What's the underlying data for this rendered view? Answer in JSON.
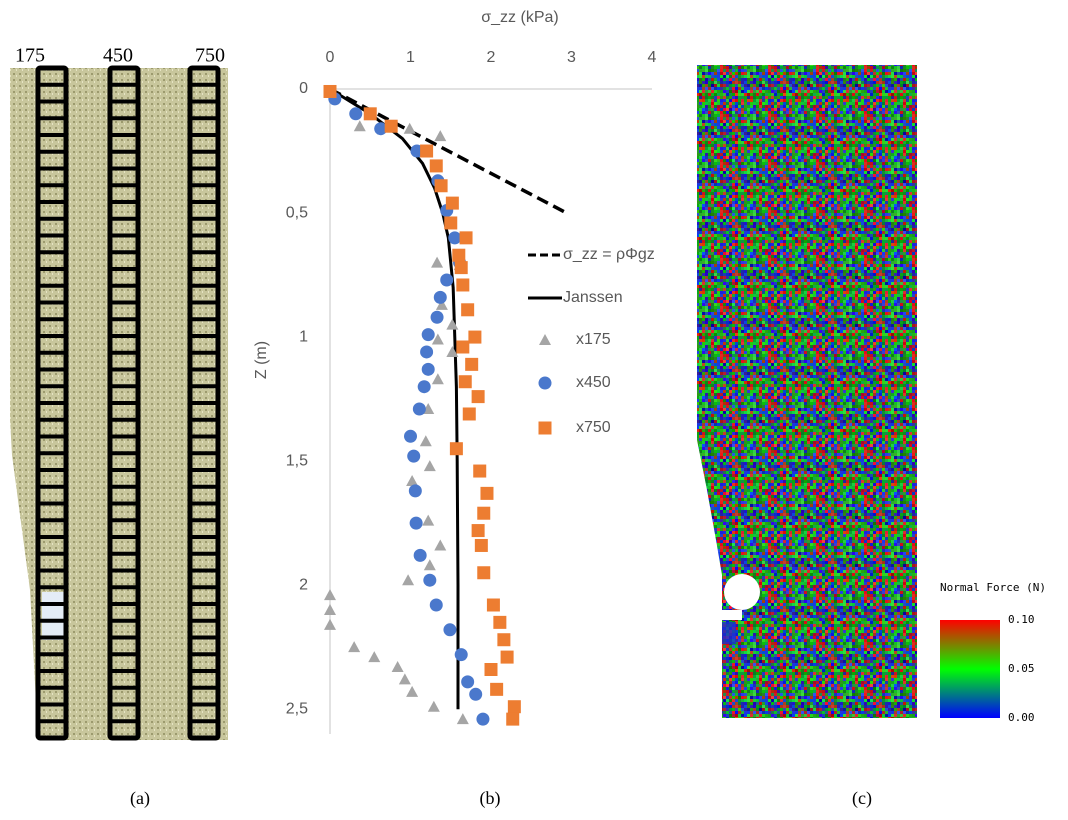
{
  "panel_a": {
    "column_labels": [
      "175",
      "450",
      "750"
    ],
    "caption": "(a)"
  },
  "chart_data": {
    "type": "scatter",
    "caption": "(b)",
    "xlabel": "σ_zz (kPa)",
    "ylabel": "Z (m)",
    "xlim": [
      0,
      4
    ],
    "xticks": [
      0,
      1,
      2,
      3,
      4
    ],
    "ylim": [
      0,
      2.6
    ],
    "yticks": [
      0,
      {
        "value": 0.5,
        "label": "0,5"
      },
      1,
      {
        "value": 1.5,
        "label": "1,5"
      },
      2,
      {
        "value": 2.5,
        "label": "2,5"
      }
    ],
    "y_inverted": true,
    "x_axis_position": "top",
    "grid": false,
    "series": [
      {
        "name": "σ_zz = ρΦgz",
        "kind": "line",
        "style": "dashed",
        "color": "#000000",
        "x": [
          0,
          2.94
        ],
        "y": [
          0,
          0.5
        ]
      },
      {
        "name": "Janssen",
        "kind": "line",
        "style": "solid",
        "color": "#000000",
        "x": [
          0,
          0.5,
          0.9,
          1.15,
          1.3,
          1.4,
          1.47,
          1.5,
          1.53,
          1.55,
          1.57,
          1.58,
          1.59,
          1.59
        ],
        "y": [
          0,
          0.1,
          0.2,
          0.3,
          0.4,
          0.5,
          0.6,
          0.7,
          0.8,
          1.0,
          1.2,
          1.5,
          2.0,
          2.5
        ]
      },
      {
        "name": "x175",
        "kind": "marker",
        "marker": "triangle",
        "color": "#a5a5a5",
        "x": [
          0.37,
          0.99,
          1.37,
          1.33,
          1.61,
          1.39,
          1.52,
          1.34,
          1.52,
          1.34,
          1.22,
          1.19,
          1.24,
          1.02,
          1.22,
          1.37,
          1.24,
          0.97,
          0,
          0,
          0,
          0.3,
          0.55,
          0.84,
          0.93,
          1.02,
          1.29,
          1.65
        ],
        "y": [
          0.15,
          0.16,
          0.19,
          0.7,
          0.71,
          0.87,
          0.95,
          1.01,
          1.06,
          1.17,
          1.29,
          1.42,
          1.52,
          1.58,
          1.74,
          1.84,
          1.92,
          1.98,
          2.04,
          2.1,
          2.16,
          2.25,
          2.29,
          2.33,
          2.38,
          2.43,
          2.49,
          2.54
        ]
      },
      {
        "name": "x450",
        "kind": "marker",
        "marker": "circle",
        "color": "#4a78cc",
        "x": [
          0.06,
          0.32,
          0.63,
          1.08,
          1.34,
          1.45,
          1.55,
          1.61,
          1.45,
          1.37,
          1.33,
          1.22,
          1.2,
          1.22,
          1.17,
          1.11,
          1.0,
          1.04,
          1.06,
          1.07,
          1.12,
          1.24,
          1.32,
          1.49,
          1.63,
          1.71,
          1.81,
          1.9
        ],
        "y": [
          0.04,
          0.1,
          0.16,
          0.25,
          0.37,
          0.49,
          0.6,
          0.7,
          0.77,
          0.84,
          0.92,
          0.99,
          1.06,
          1.13,
          1.2,
          1.29,
          1.4,
          1.48,
          1.62,
          1.75,
          1.88,
          1.98,
          2.08,
          2.18,
          2.28,
          2.39,
          2.44,
          2.54
        ]
      },
      {
        "name": "x750",
        "kind": "marker",
        "marker": "square",
        "color": "#ed7d31",
        "x": [
          0,
          0.5,
          0.76,
          1.2,
          1.32,
          1.38,
          1.52,
          1.5,
          1.69,
          1.6,
          1.63,
          1.65,
          1.71,
          1.8,
          1.65,
          1.76,
          1.68,
          1.84,
          1.73,
          1.57,
          1.86,
          1.95,
          1.91,
          1.84,
          1.88,
          1.91,
          2.03,
          2.11,
          2.16,
          2.2,
          2.0,
          2.07,
          2.29,
          2.27
        ],
        "y": [
          0.01,
          0.1,
          0.15,
          0.25,
          0.31,
          0.39,
          0.46,
          0.54,
          0.6,
          0.67,
          0.72,
          0.79,
          0.89,
          1.0,
          1.04,
          1.11,
          1.18,
          1.24,
          1.31,
          1.45,
          1.54,
          1.63,
          1.71,
          1.78,
          1.84,
          1.95,
          2.08,
          2.15,
          2.22,
          2.29,
          2.34,
          2.42,
          2.49,
          2.54
        ]
      }
    ]
  },
  "panel_c": {
    "colorbar_title": "Normal Force (N)",
    "colorbar_ticks": [
      {
        "value": 0.1,
        "label": "0.10"
      },
      {
        "value": 0.05,
        "label": "0.05"
      },
      {
        "value": 0,
        "label": "0.00"
      }
    ],
    "caption": "(c)"
  }
}
